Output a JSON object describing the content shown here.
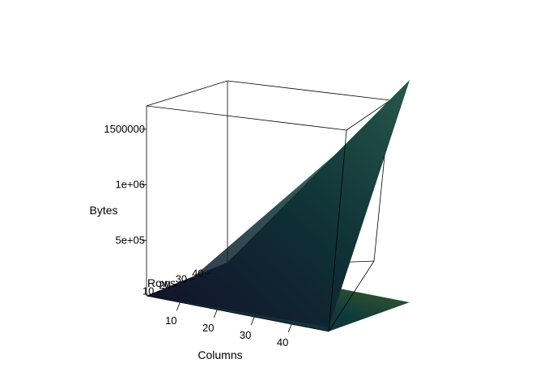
{
  "chart_data": {
    "type": "surface3d",
    "title": "",
    "xlabel": "Columns",
    "ylabel": "Rows",
    "zlabel": "Bytes",
    "xticks": [
      10,
      20,
      30,
      40
    ],
    "yticks": [
      10,
      20,
      30,
      40
    ],
    "zticks": [
      500000,
      1000000,
      1500000
    ],
    "ztick_labels": [
      "5e+05",
      "1e+06",
      "1500000"
    ],
    "xlim": [
      1,
      50
    ],
    "ylim": [
      1,
      50
    ],
    "zlim": [
      0,
      2000000
    ],
    "surface_model": "bytes ≈ rows × columns × 800",
    "surface": {
      "x": [
        1,
        10,
        20,
        30,
        40,
        50
      ],
      "y": [
        1,
        10,
        20,
        30,
        40,
        50
      ],
      "z": [
        [
          800,
          8000,
          16000,
          24000,
          32000,
          40000
        ],
        [
          8000,
          80000,
          160000,
          240000,
          320000,
          400000
        ],
        [
          16000,
          160000,
          320000,
          480000,
          640000,
          800000
        ],
        [
          24000,
          240000,
          480000,
          720000,
          960000,
          1200000
        ],
        [
          32000,
          320000,
          640000,
          960000,
          1280000,
          1600000
        ],
        [
          40000,
          400000,
          800000,
          1200000,
          1600000,
          2000000
        ]
      ]
    },
    "colormap": [
      "#2a0a3a",
      "#0f2a3c",
      "#0e4a48",
      "#3a5a26"
    ],
    "floor_projection": true,
    "grid": false,
    "legend": "none"
  }
}
